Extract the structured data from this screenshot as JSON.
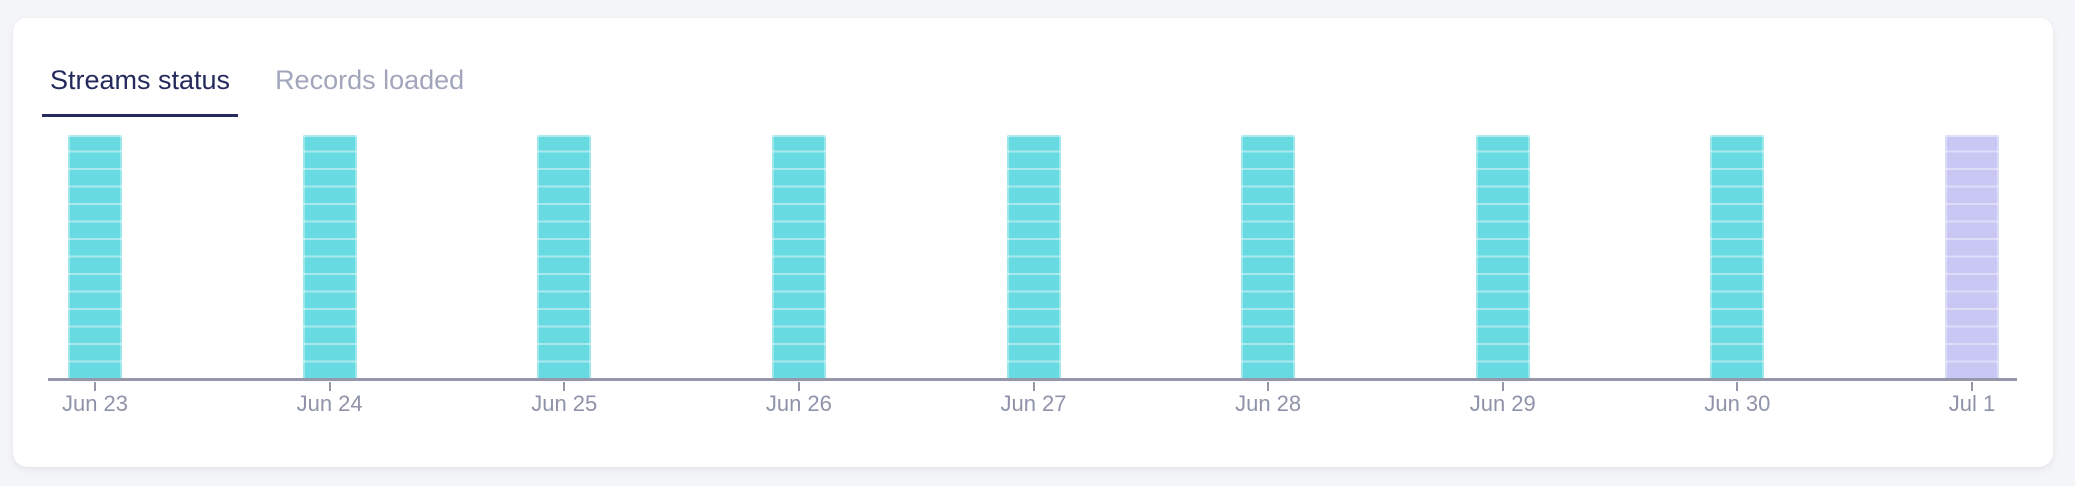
{
  "page": {
    "background": "#F4F5F8"
  },
  "card": {
    "background": "#FFFFFF"
  },
  "tabs": [
    {
      "id": "streams-status",
      "label": "Streams status",
      "active": true
    },
    {
      "id": "records-loaded",
      "label": "Records loaded",
      "active": false
    }
  ],
  "chart_data": {
    "type": "bar",
    "title": "Streams status",
    "categories": [
      "Jun 23",
      "Jun 24",
      "Jun 25",
      "Jun 26",
      "Jun 27",
      "Jun 28",
      "Jun 29",
      "Jun 30",
      "Jul 1"
    ],
    "series": [
      {
        "name": "streams",
        "values": [
          14,
          14,
          14,
          14,
          14,
          14,
          14,
          14,
          14
        ]
      }
    ],
    "segments_per_bar": 14,
    "bar_color_roles": [
      "teal",
      "teal",
      "teal",
      "teal",
      "teal",
      "teal",
      "teal",
      "teal",
      "lavender"
    ],
    "ylim": [
      0,
      14
    ],
    "xlabel": "",
    "ylabel": "",
    "grid": false,
    "legend": false,
    "colors": {
      "teal": "#68DAE1",
      "teal_stripe": "#A9E9ED",
      "lavender": "#C9C8F5",
      "lavender_stripe": "#DDDCF9",
      "axis_line": "#9697AB",
      "tick_label": "#8F93A9",
      "active_tab": "#252A5C",
      "inactive_tab": "#A2A6BB"
    }
  }
}
